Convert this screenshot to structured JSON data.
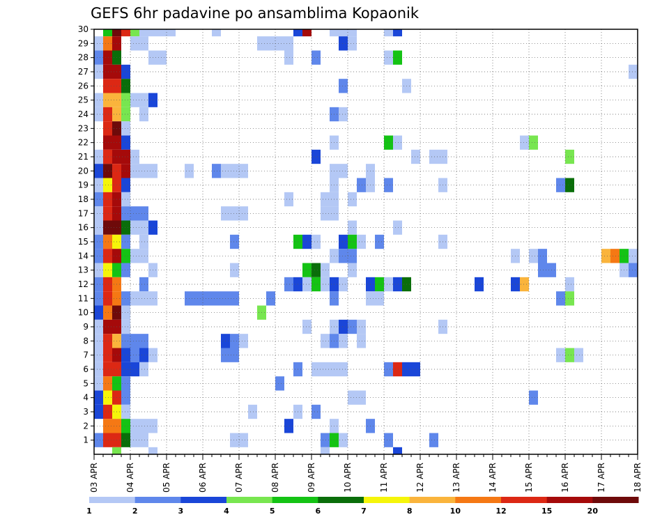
{
  "chart_data": {
    "type": "heatmap",
    "title": "GEFS 6hr padavine po ansamblima Kopaonik",
    "xlabel": "",
    "ylabel": "",
    "x_tick_labels": [
      "03 APR",
      "04 APR",
      "05 APR",
      "06 APR",
      "07 APR",
      "08 APR",
      "09 APR",
      "10 APR",
      "11 APR",
      "12 APR",
      "13 APR",
      "14 APR",
      "15 APR",
      "16 APR",
      "17 APR",
      "18 APR"
    ],
    "xlim": [
      0,
      60
    ],
    "x_unit": "6-hour steps from 03 APR 00Z",
    "y_tick_labels": [
      "1",
      "2",
      "3",
      "4",
      "5",
      "6",
      "7",
      "8",
      "9",
      "10",
      "11",
      "12",
      "13",
      "14",
      "15",
      "16",
      "17",
      "18",
      "19",
      "20",
      "21",
      "22",
      "23",
      "24",
      "25",
      "26",
      "27",
      "28",
      "29",
      "30"
    ],
    "ylim": [
      0,
      30
    ],
    "grid": true,
    "colorbar": {
      "labels": [
        "1",
        "2",
        "3",
        "4",
        "5",
        "6",
        "7",
        "8",
        "10",
        "12",
        "15",
        "20"
      ],
      "colors": [
        "#b4c8f5",
        "#5f87eb",
        "#1a46d8",
        "#78e650",
        "#14c314",
        "#0a6e0a",
        "#f5f50a",
        "#fab43c",
        "#f57814",
        "#dc2814",
        "#a50a0a",
        "#6e0a0a"
      ]
    },
    "cells": [
      [
        1,
        30,
        5
      ],
      [
        2,
        30,
        12
      ],
      [
        3,
        30,
        10
      ],
      [
        4,
        30,
        4
      ],
      [
        5,
        30,
        1
      ],
      [
        6,
        30,
        1
      ],
      [
        7,
        30,
        1
      ],
      [
        8,
        30,
        1
      ],
      [
        13,
        30,
        1
      ],
      [
        22,
        30,
        3
      ],
      [
        23,
        30,
        11
      ],
      [
        26,
        30,
        1
      ],
      [
        27,
        30,
        1
      ],
      [
        28,
        30,
        1
      ],
      [
        32,
        30,
        1
      ],
      [
        33,
        30,
        3
      ],
      [
        0,
        29,
        1
      ],
      [
        1,
        29,
        9
      ],
      [
        2,
        29,
        11
      ],
      [
        4,
        29,
        1
      ],
      [
        5,
        29,
        1
      ],
      [
        18,
        29,
        1
      ],
      [
        19,
        29,
        1
      ],
      [
        20,
        29,
        1
      ],
      [
        21,
        29,
        1
      ],
      [
        27,
        29,
        3
      ],
      [
        28,
        29,
        1
      ],
      [
        0,
        28,
        2
      ],
      [
        1,
        28,
        11
      ],
      [
        2,
        28,
        6
      ],
      [
        6,
        28,
        1
      ],
      [
        7,
        28,
        1
      ],
      [
        21,
        28,
        1
      ],
      [
        24,
        28,
        2
      ],
      [
        32,
        28,
        1
      ],
      [
        33,
        28,
        5
      ],
      [
        0,
        27,
        1
      ],
      [
        1,
        27,
        11
      ],
      [
        2,
        27,
        11
      ],
      [
        3,
        27,
        3
      ],
      [
        59,
        27,
        1
      ],
      [
        1,
        26,
        10
      ],
      [
        2,
        26,
        10
      ],
      [
        3,
        26,
        6
      ],
      [
        27,
        26,
        2
      ],
      [
        34,
        26,
        1
      ],
      [
        0,
        25,
        1
      ],
      [
        1,
        25,
        8
      ],
      [
        2,
        25,
        8
      ],
      [
        3,
        25,
        4
      ],
      [
        4,
        25,
        1
      ],
      [
        5,
        25,
        1
      ],
      [
        6,
        25,
        3
      ],
      [
        0,
        24,
        1
      ],
      [
        1,
        24,
        10
      ],
      [
        2,
        24,
        8
      ],
      [
        3,
        24,
        4
      ],
      [
        5,
        24,
        1
      ],
      [
        26,
        24,
        2
      ],
      [
        27,
        24,
        1
      ],
      [
        1,
        23,
        10
      ],
      [
        2,
        23,
        12
      ],
      [
        3,
        23,
        1
      ],
      [
        1,
        22,
        11
      ],
      [
        2,
        22,
        11
      ],
      [
        3,
        22,
        3
      ],
      [
        26,
        22,
        1
      ],
      [
        32,
        22,
        5
      ],
      [
        33,
        22,
        1
      ],
      [
        47,
        22,
        1
      ],
      [
        48,
        22,
        4
      ],
      [
        0,
        21,
        1
      ],
      [
        1,
        21,
        10
      ],
      [
        2,
        21,
        11
      ],
      [
        3,
        21,
        11
      ],
      [
        4,
        21,
        1
      ],
      [
        24,
        21,
        3
      ],
      [
        35,
        21,
        1
      ],
      [
        37,
        21,
        1
      ],
      [
        38,
        21,
        1
      ],
      [
        52,
        21,
        4
      ],
      [
        0,
        20,
        3
      ],
      [
        1,
        20,
        12
      ],
      [
        2,
        20,
        10
      ],
      [
        3,
        20,
        11
      ],
      [
        4,
        20,
        1
      ],
      [
        5,
        20,
        1
      ],
      [
        6,
        20,
        1
      ],
      [
        10,
        20,
        1
      ],
      [
        13,
        20,
        2
      ],
      [
        14,
        20,
        1
      ],
      [
        15,
        20,
        1
      ],
      [
        16,
        20,
        1
      ],
      [
        26,
        20,
        1
      ],
      [
        27,
        20,
        1
      ],
      [
        30,
        20,
        1
      ],
      [
        0,
        19,
        1
      ],
      [
        1,
        19,
        7
      ],
      [
        2,
        19,
        10
      ],
      [
        3,
        19,
        3
      ],
      [
        26,
        19,
        1
      ],
      [
        29,
        19,
        2
      ],
      [
        30,
        19,
        1
      ],
      [
        32,
        19,
        2
      ],
      [
        38,
        19,
        1
      ],
      [
        51,
        19,
        2
      ],
      [
        52,
        19,
        6
      ],
      [
        0,
        18,
        2
      ],
      [
        1,
        18,
        10
      ],
      [
        2,
        18,
        11
      ],
      [
        3,
        18,
        1
      ],
      [
        21,
        18,
        1
      ],
      [
        25,
        18,
        1
      ],
      [
        26,
        18,
        1
      ],
      [
        28,
        18,
        1
      ],
      [
        0,
        17,
        1
      ],
      [
        1,
        17,
        10
      ],
      [
        2,
        17,
        11
      ],
      [
        3,
        17,
        2
      ],
      [
        4,
        17,
        2
      ],
      [
        5,
        17,
        2
      ],
      [
        14,
        17,
        1
      ],
      [
        15,
        17,
        1
      ],
      [
        16,
        17,
        1
      ],
      [
        25,
        17,
        1
      ],
      [
        26,
        17,
        1
      ],
      [
        0,
        16,
        1
      ],
      [
        1,
        16,
        12
      ],
      [
        2,
        16,
        12
      ],
      [
        3,
        16,
        6
      ],
      [
        4,
        16,
        1
      ],
      [
        5,
        16,
        1
      ],
      [
        6,
        16,
        3
      ],
      [
        28,
        16,
        1
      ],
      [
        33,
        16,
        1
      ],
      [
        0,
        15,
        2
      ],
      [
        1,
        15,
        9
      ],
      [
        2,
        15,
        7
      ],
      [
        3,
        15,
        2
      ],
      [
        5,
        15,
        1
      ],
      [
        15,
        15,
        2
      ],
      [
        22,
        15,
        5
      ],
      [
        23,
        15,
        3
      ],
      [
        24,
        15,
        1
      ],
      [
        27,
        15,
        3
      ],
      [
        28,
        15,
        5
      ],
      [
        29,
        15,
        1
      ],
      [
        31,
        15,
        2
      ],
      [
        38,
        15,
        1
      ],
      [
        0,
        14,
        2
      ],
      [
        1,
        14,
        10
      ],
      [
        2,
        14,
        11
      ],
      [
        3,
        14,
        5
      ],
      [
        4,
        14,
        1
      ],
      [
        5,
        14,
        1
      ],
      [
        26,
        14,
        1
      ],
      [
        27,
        14,
        2
      ],
      [
        28,
        14,
        2
      ],
      [
        46,
        14,
        1
      ],
      [
        48,
        14,
        1
      ],
      [
        49,
        14,
        2
      ],
      [
        56,
        14,
        8
      ],
      [
        57,
        14,
        9
      ],
      [
        58,
        14,
        5
      ],
      [
        59,
        14,
        1
      ],
      [
        0,
        13,
        1
      ],
      [
        1,
        13,
        7
      ],
      [
        2,
        13,
        5
      ],
      [
        3,
        13,
        2
      ],
      [
        6,
        13,
        1
      ],
      [
        15,
        13,
        1
      ],
      [
        23,
        13,
        5
      ],
      [
        24,
        13,
        6
      ],
      [
        25,
        13,
        1
      ],
      [
        28,
        13,
        1
      ],
      [
        49,
        13,
        2
      ],
      [
        50,
        13,
        2
      ],
      [
        58,
        13,
        1
      ],
      [
        59,
        13,
        2
      ],
      [
        0,
        12,
        2
      ],
      [
        1,
        12,
        10
      ],
      [
        2,
        12,
        9
      ],
      [
        5,
        12,
        2
      ],
      [
        21,
        12,
        2
      ],
      [
        22,
        12,
        3
      ],
      [
        23,
        12,
        1
      ],
      [
        24,
        12,
        5
      ],
      [
        25,
        12,
        1
      ],
      [
        26,
        12,
        3
      ],
      [
        27,
        12,
        1
      ],
      [
        30,
        12,
        3
      ],
      [
        31,
        12,
        5
      ],
      [
        32,
        12,
        1
      ],
      [
        33,
        12,
        3
      ],
      [
        34,
        12,
        6
      ],
      [
        42,
        12,
        3
      ],
      [
        46,
        12,
        3
      ],
      [
        47,
        12,
        8
      ],
      [
        52,
        12,
        1
      ],
      [
        0,
        11,
        2
      ],
      [
        1,
        11,
        10
      ],
      [
        2,
        11,
        9
      ],
      [
        3,
        11,
        2
      ],
      [
        4,
        11,
        1
      ],
      [
        5,
        11,
        1
      ],
      [
        6,
        11,
        1
      ],
      [
        10,
        11,
        2
      ],
      [
        11,
        11,
        2
      ],
      [
        12,
        11,
        2
      ],
      [
        13,
        11,
        2
      ],
      [
        14,
        11,
        2
      ],
      [
        15,
        11,
        2
      ],
      [
        19,
        11,
        2
      ],
      [
        26,
        11,
        2
      ],
      [
        30,
        11,
        1
      ],
      [
        31,
        11,
        1
      ],
      [
        51,
        11,
        2
      ],
      [
        52,
        11,
        4
      ],
      [
        0,
        10,
        3
      ],
      [
        1,
        10,
        9
      ],
      [
        2,
        10,
        12
      ],
      [
        3,
        10,
        1
      ],
      [
        18,
        10,
        4
      ],
      [
        0,
        9,
        1
      ],
      [
        1,
        9,
        11
      ],
      [
        2,
        9,
        11
      ],
      [
        3,
        9,
        1
      ],
      [
        23,
        9,
        1
      ],
      [
        26,
        9,
        1
      ],
      [
        27,
        9,
        3
      ],
      [
        28,
        9,
        2
      ],
      [
        29,
        9,
        1
      ],
      [
        38,
        9,
        1
      ],
      [
        0,
        8,
        1
      ],
      [
        1,
        8,
        10
      ],
      [
        2,
        8,
        8
      ],
      [
        3,
        8,
        2
      ],
      [
        4,
        8,
        2
      ],
      [
        5,
        8,
        2
      ],
      [
        14,
        8,
        3
      ],
      [
        15,
        8,
        2
      ],
      [
        16,
        8,
        1
      ],
      [
        25,
        8,
        1
      ],
      [
        26,
        8,
        2
      ],
      [
        27,
        8,
        1
      ],
      [
        29,
        8,
        1
      ],
      [
        0,
        7,
        1
      ],
      [
        1,
        7,
        10
      ],
      [
        2,
        7,
        11
      ],
      [
        3,
        7,
        3
      ],
      [
        4,
        7,
        2
      ],
      [
        5,
        7,
        3
      ],
      [
        6,
        7,
        1
      ],
      [
        14,
        7,
        2
      ],
      [
        15,
        7,
        2
      ],
      [
        51,
        7,
        1
      ],
      [
        52,
        7,
        4
      ],
      [
        53,
        7,
        1
      ],
      [
        0,
        6,
        1
      ],
      [
        1,
        6,
        10
      ],
      [
        2,
        6,
        10
      ],
      [
        3,
        6,
        3
      ],
      [
        4,
        6,
        3
      ],
      [
        5,
        6,
        1
      ],
      [
        22,
        6,
        2
      ],
      [
        24,
        6,
        1
      ],
      [
        25,
        6,
        1
      ],
      [
        26,
        6,
        1
      ],
      [
        27,
        6,
        1
      ],
      [
        32,
        6,
        2
      ],
      [
        33,
        6,
        10
      ],
      [
        34,
        6,
        3
      ],
      [
        35,
        6,
        3
      ],
      [
        0,
        5,
        1
      ],
      [
        1,
        5,
        9
      ],
      [
        2,
        5,
        5
      ],
      [
        3,
        5,
        2
      ],
      [
        20,
        5,
        2
      ],
      [
        0,
        4,
        3
      ],
      [
        1,
        4,
        7
      ],
      [
        2,
        4,
        10
      ],
      [
        3,
        4,
        2
      ],
      [
        28,
        4,
        1
      ],
      [
        29,
        4,
        1
      ],
      [
        48,
        4,
        2
      ],
      [
        0,
        3,
        3
      ],
      [
        1,
        3,
        10
      ],
      [
        2,
        3,
        7
      ],
      [
        3,
        3,
        1
      ],
      [
        17,
        3,
        1
      ],
      [
        22,
        3,
        1
      ],
      [
        24,
        3,
        2
      ],
      [
        1,
        2,
        9
      ],
      [
        2,
        2,
        9
      ],
      [
        3,
        2,
        5
      ],
      [
        4,
        2,
        1
      ],
      [
        5,
        2,
        1
      ],
      [
        6,
        2,
        1
      ],
      [
        21,
        2,
        3
      ],
      [
        26,
        2,
        1
      ],
      [
        30,
        2,
        2
      ],
      [
        0,
        1,
        2
      ],
      [
        1,
        1,
        10
      ],
      [
        2,
        1,
        10
      ],
      [
        3,
        1,
        6
      ],
      [
        4,
        1,
        1
      ],
      [
        5,
        1,
        1
      ],
      [
        15,
        1,
        1
      ],
      [
        16,
        1,
        1
      ],
      [
        25,
        1,
        2
      ],
      [
        26,
        1,
        5
      ],
      [
        27,
        1,
        1
      ],
      [
        32,
        1,
        2
      ],
      [
        37,
        1,
        2
      ],
      [
        2,
        0,
        4
      ],
      [
        6,
        0,
        1
      ],
      [
        25,
        0,
        1
      ],
      [
        33,
        0,
        3
      ]
    ]
  }
}
